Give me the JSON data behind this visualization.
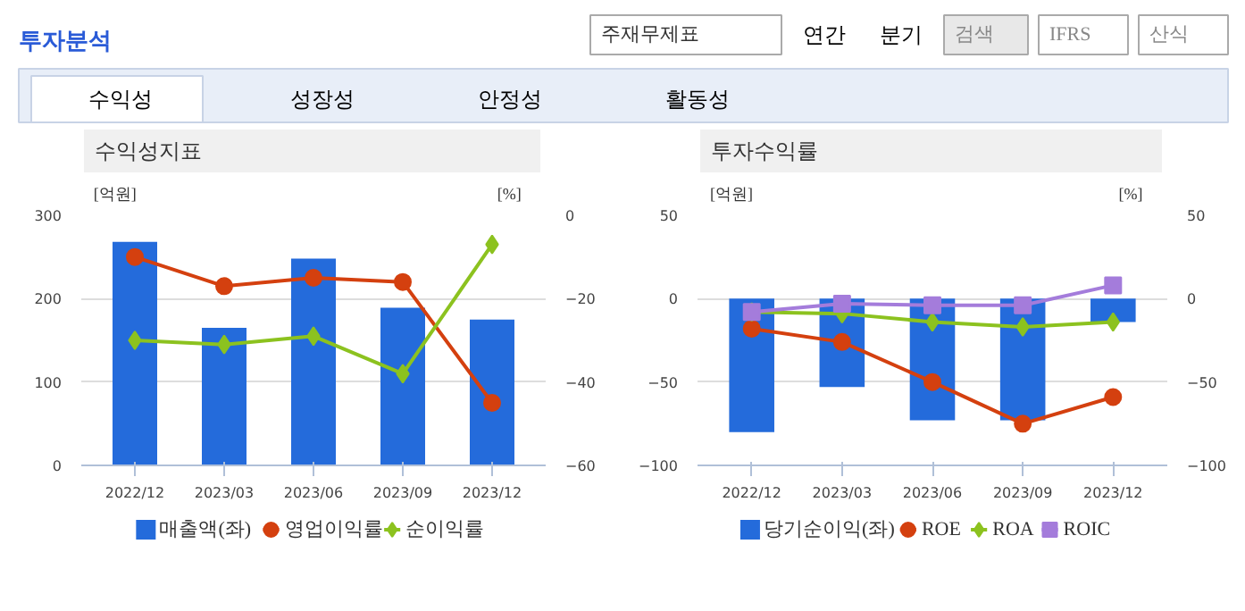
{
  "chart_data": [
    {
      "type": "other",
      "title": "투자분석",
      "annotations": [
        "주재무제표",
        "연간",
        "분기",
        "검색",
        "IFRS",
        "산식",
        "수익성",
        "성장성",
        "안정성",
        "활동성"
      ]
    },
    {
      "type": "bar",
      "title": "수익성지표",
      "ylabel": "[억원]",
      "y2label": "[%]",
      "categories": [
        "2022/12",
        "2023/03",
        "2023/06",
        "2023/09",
        "2023/12"
      ],
      "ylim": [
        0,
        300
      ],
      "yticks": [
        0,
        100,
        200,
        300
      ],
      "y2lim": [
        -60,
        0
      ],
      "y2ticks": [
        -60,
        -40,
        -20,
        0
      ],
      "grid": "y",
      "legend": "bottom",
      "series": [
        {
          "name": "매출액(좌)",
          "type": "bar",
          "color": "#246bdb",
          "values": [
            268,
            165,
            248,
            189,
            175
          ]
        },
        {
          "name": "영업이익률",
          "type": "line",
          "axis": "y2",
          "marker": "circle",
          "color": "#d4400f",
          "values": [
            -10,
            -17,
            -15,
            -16,
            -45
          ]
        },
        {
          "name": "순이익률",
          "type": "line",
          "axis": "y2",
          "marker": "diamond",
          "color": "#8cc21f",
          "values": [
            -30,
            -31,
            -29,
            -38,
            -7
          ]
        }
      ]
    },
    {
      "type": "bar",
      "title": "투자수익률",
      "ylabel": "[억원]",
      "y2label": "[%]",
      "categories": [
        "2022/12",
        "2023/03",
        "2023/06",
        "2023/09",
        "2023/12"
      ],
      "ylim": [
        -100,
        50
      ],
      "yticks": [
        -100,
        -50,
        0,
        50
      ],
      "y2lim": [
        -100,
        50
      ],
      "y2ticks": [
        -100,
        -50,
        0,
        50
      ],
      "grid": "y",
      "legend": "bottom",
      "series": [
        {
          "name": "당기순이익(좌)",
          "type": "bar",
          "color": "#246bdb",
          "values": [
            -80,
            -53,
            -73,
            -73,
            -14
          ]
        },
        {
          "name": "ROE",
          "type": "line",
          "axis": "y2",
          "marker": "circle",
          "color": "#d4400f",
          "values": [
            -18,
            -26,
            -50,
            -75,
            -59
          ]
        },
        {
          "name": "ROA",
          "type": "line",
          "axis": "y2",
          "marker": "diamond",
          "color": "#8cc21f",
          "values": [
            -8,
            -9,
            -14,
            -17,
            -14
          ]
        },
        {
          "name": "ROIC",
          "type": "line",
          "axis": "y2",
          "marker": "square",
          "color": "#a47cdb",
          "values": [
            -8,
            -3,
            -4,
            -4,
            8
          ]
        }
      ]
    }
  ]
}
